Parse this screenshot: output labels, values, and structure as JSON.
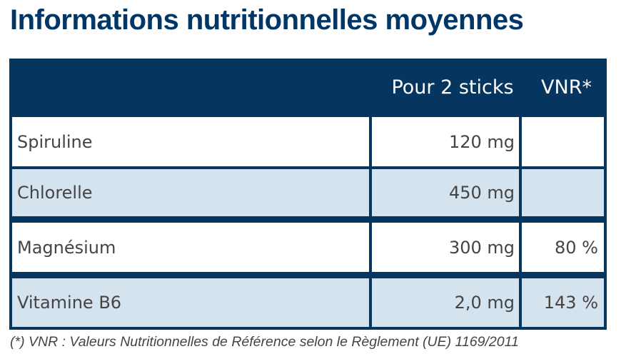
{
  "title": "Informations nutritionnelles moyennes",
  "table": {
    "headers": [
      "",
      "Pour 2 sticks",
      "VNR*"
    ],
    "rows": [
      {
        "name": "Spiruline",
        "amount": "120 mg",
        "vnr": ""
      },
      {
        "name": "Chlorelle",
        "amount": "450 mg",
        "vnr": ""
      },
      {
        "name": "Magnésium",
        "amount": "300 mg",
        "vnr": "80 %"
      },
      {
        "name": "Vitamine B6",
        "amount": "2,0 mg",
        "vnr": "143 %"
      }
    ]
  },
  "footnote": "(*) VNR : Valeurs Nutritionnelles de Référence selon le Règlement (UE) 1169/2011",
  "colors": {
    "header_bg": "#06365f",
    "title": "#003767",
    "row_alt": "#d5e3ef",
    "text": "#444444"
  }
}
